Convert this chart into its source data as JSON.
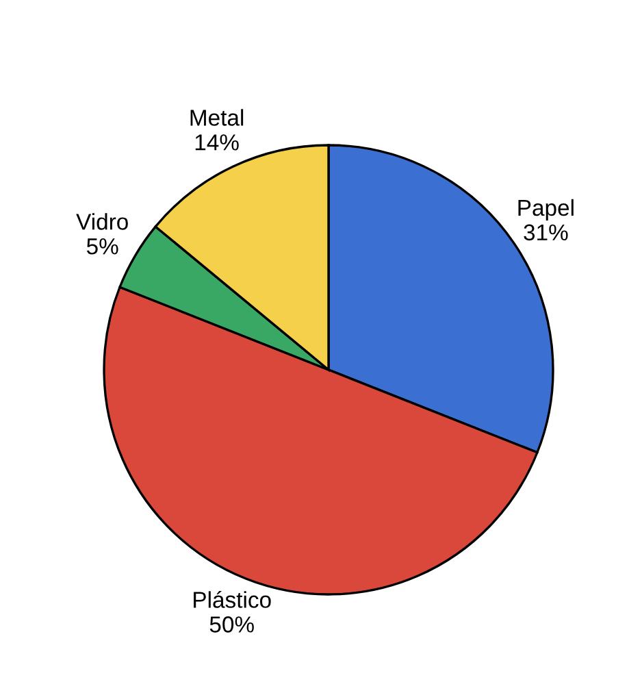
{
  "chart_data": {
    "type": "pie",
    "categories": [
      "Papel",
      "Plástico",
      "Vidro",
      "Metal"
    ],
    "values": [
      31,
      50,
      5,
      14
    ],
    "colors": [
      "#3b6fd1",
      "#d9483b",
      "#3aa865",
      "#f5d04a"
    ],
    "value_labels": [
      "31%",
      "50%",
      "5%",
      "14%"
    ]
  }
}
